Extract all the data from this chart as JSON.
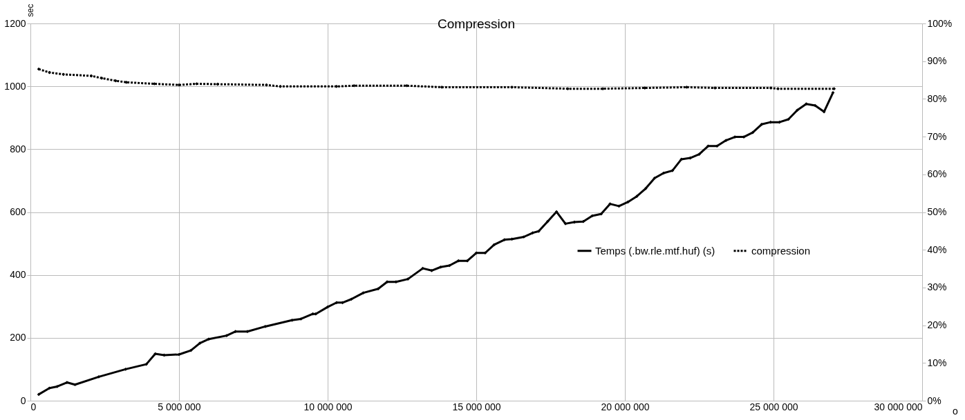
{
  "chart_data": {
    "type": "line",
    "title": "Compression",
    "xlabel": "o",
    "ylabel": "sec",
    "xlim": [
      0,
      30000000
    ],
    "xticks": [
      0,
      {
        "value": 5000000,
        "label": "5 000 000"
      },
      {
        "value": 10000000,
        "label": "10 000 000"
      },
      {
        "value": 15000000,
        "label": "15 000 000"
      },
      {
        "value": 20000000,
        "label": "20 000 000"
      },
      {
        "value": 25000000,
        "label": "25 000 000"
      },
      {
        "value": 30000000,
        "label": "30 000 000"
      }
    ],
    "ylim": [
      0,
      1200
    ],
    "yticks": [
      0,
      200,
      400,
      600,
      800,
      1000,
      1200
    ],
    "y2lim": [
      0,
      100
    ],
    "y2ticks": [
      {
        "value": 0,
        "label": "0%"
      },
      {
        "value": 10,
        "label": "10%"
      },
      {
        "value": 20,
        "label": "20%"
      },
      {
        "value": 30,
        "label": "30%"
      },
      {
        "value": 40,
        "label": "40%"
      },
      {
        "value": 50,
        "label": "50%"
      },
      {
        "value": 60,
        "label": "60%"
      },
      {
        "value": 70,
        "label": "70%"
      },
      {
        "value": 80,
        "label": "80%"
      },
      {
        "value": 90,
        "label": "90%"
      },
      {
        "value": 100,
        "label": "100%"
      }
    ],
    "grid": true,
    "legend": "right",
    "marker": "diamond",
    "series": [
      {
        "name": "Temps (.bw.rle.mtf.huf) (s)",
        "color": "#000000",
        "line_style": "solid",
        "x": [
          280000,
          640000,
          900000,
          1230000,
          1500000,
          2300000,
          3200000,
          3900000,
          4200000,
          4500000,
          5000000,
          5400000,
          5700000,
          6000000,
          6600000,
          6900000,
          7300000,
          7900000,
          8800000,
          9100000,
          9500000,
          9600000,
          10000000,
          10300000,
          10500000,
          10800000,
          11200000,
          11700000,
          12000000,
          12300000,
          12700000,
          13200000,
          13500000,
          13800000,
          14100000,
          14400000,
          14700000,
          15000000,
          15300000,
          15600000,
          15950000,
          16200000,
          16600000,
          16900000,
          17100000,
          17400000,
          17700000,
          18000000,
          18300000,
          18600000,
          18900000,
          19200000,
          19500000,
          19800000,
          20100000,
          20400000,
          20700000,
          21000000,
          21300000,
          21600000,
          21900000,
          22200000,
          22500000,
          22800000,
          23100000,
          23400000,
          23700000,
          24000000,
          24300000,
          24600000,
          24900000,
          25200000,
          25500000,
          25800000,
          26100000,
          26400000,
          26700000,
          27000000
        ],
        "values": [
          20,
          40,
          45,
          58,
          51,
          76,
          100,
          116,
          149,
          145,
          147,
          160,
          183,
          196,
          207,
          220,
          220,
          236,
          256,
          260,
          276,
          276,
          298,
          312,
          312,
          323,
          343,
          356,
          378,
          378,
          387,
          421,
          414,
          425,
          430,
          445,
          445,
          470,
          470,
          496,
          512,
          514,
          521,
          534,
          539,
          570,
          601,
          563,
          568,
          570,
          588,
          594,
          626,
          619,
          632,
          650,
          675,
          708,
          724,
          732,
          768,
          772,
          784,
          810,
          810,
          828,
          839,
          839,
          853,
          879,
          886,
          886,
          895,
          924,
          944,
          939,
          919,
          980
        ]
      },
      {
        "name": "compression",
        "color": "#000000",
        "line_style": "dotted",
        "axis": "y2",
        "x": [
          280000,
          640000,
          1110000,
          2050000,
          2400000,
          2870000,
          3230000,
          4170000,
          5000000,
          5590000,
          6290000,
          7940000,
          8410000,
          10300000,
          10890000,
          12660000,
          13840000,
          16200000,
          18080000,
          19260000,
          20670000,
          22080000,
          23030000,
          24910000,
          25150000,
          27040000
        ],
        "values": [
          87.9,
          87.0,
          86.5,
          86.1,
          85.5,
          84.8,
          84.4,
          84.0,
          83.7,
          84.0,
          83.9,
          83.7,
          83.3,
          83.3,
          83.5,
          83.5,
          83.1,
          83.1,
          82.7,
          82.7,
          82.9,
          83.1,
          82.9,
          82.9,
          82.7,
          82.7
        ]
      }
    ]
  }
}
